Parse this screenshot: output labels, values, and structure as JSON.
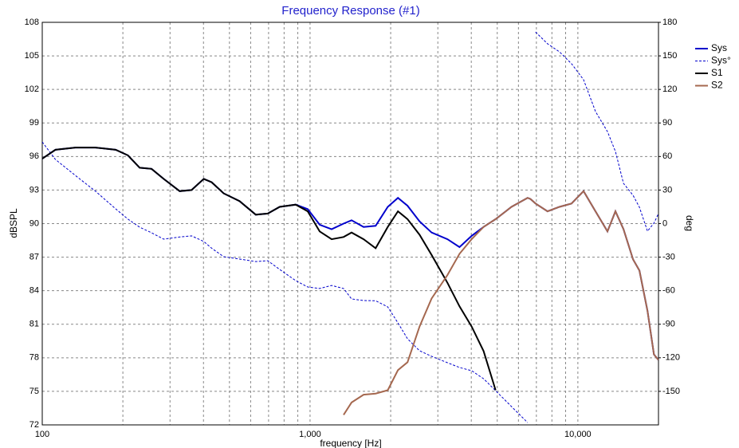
{
  "chart_data": {
    "type": "line",
    "title": "Frequency Response (#1)",
    "xlabel": "frequency [Hz]",
    "ylabel": "dBSPL",
    "y2label": "deg",
    "xscale": "log",
    "xlim": [
      100,
      20000
    ],
    "xticks": [
      100,
      {
        "value": 1000,
        "label": "1,000"
      },
      {
        "value": 10000,
        "label": "10,000"
      }
    ],
    "xminor_ticks": [
      200,
      300,
      400,
      500,
      600,
      700,
      800,
      900,
      2000,
      3000,
      4000,
      5000,
      6000,
      7000,
      8000,
      9000
    ],
    "ylim": [
      72,
      108
    ],
    "yticks": [
      72,
      75,
      78,
      81,
      84,
      87,
      90,
      93,
      96,
      99,
      102,
      105,
      108
    ],
    "y2lim": [
      -180,
      180
    ],
    "y2ticks": [
      -150,
      -120,
      -90,
      -60,
      -30,
      0,
      30,
      60,
      90,
      120,
      150,
      180
    ],
    "grid": true,
    "legend": "top-right",
    "x": [
      100,
      112,
      133,
      158,
      188,
      209,
      231,
      256,
      284,
      326,
      361,
      401,
      429,
      476,
      546,
      627,
      695,
      770,
      884,
      980,
      1086,
      1204,
      1334,
      1429,
      1585,
      1757,
      1950,
      2129,
      2311,
      2564,
      2843,
      3260,
      3614,
      4010,
      4446,
      4930,
      5652,
      6488,
      6650,
      6950,
      7705,
      8540,
      9470,
      10500,
      11640,
      12900,
      13810,
      14800,
      16070,
      16980,
      18190,
      19230,
      20000
    ],
    "series": [
      {
        "name": "Sys",
        "color": "#0000cc",
        "values": [
          95.8,
          96.6,
          96.8,
          96.8,
          96.6,
          96.1,
          95.0,
          94.9,
          94.0,
          92.9,
          93.0,
          94.0,
          93.7,
          92.7,
          92.0,
          90.8,
          90.9,
          91.5,
          91.7,
          91.3,
          89.9,
          89.5,
          90.0,
          90.3,
          89.7,
          89.8,
          91.5,
          92.3,
          91.6,
          90.2,
          89.2,
          88.6,
          87.9,
          88.9,
          89.7,
          90.4,
          91.5,
          92.3,
          92.2,
          91.8,
          91.1,
          91.5,
          91.8,
          92.9,
          91.1,
          89.3,
          91.1,
          89.5,
          86.8,
          85.8,
          82.2,
          78.3,
          77.8
        ]
      },
      {
        "name": "Sys°",
        "color": "#0000cc",
        "axis": "y2",
        "style": "dashed",
        "values": [
          73,
          57.4,
          43,
          29,
          13.2,
          4,
          -3.2,
          -8.2,
          -13.9,
          -12,
          -11,
          -16,
          -22,
          -29.6,
          -31.7,
          -33.9,
          -33.2,
          -41,
          -51,
          -56.7,
          -58,
          -55.3,
          -58,
          -67.4,
          -68.8,
          -69,
          -74.5,
          -88.8,
          -103,
          -113.7,
          -118.7,
          -124.4,
          -128.7,
          -131.5,
          -138.7,
          -149.4,
          -163.6,
          -177.9,
          null,
          171.4,
          160.8,
          153.6,
          143,
          128.7,
          100.2,
          82.3,
          64.5,
          36,
          25.3,
          14.6,
          -6.8,
          0.4,
          9
        ]
      },
      {
        "name": "S1",
        "color": "#000000",
        "values": [
          95.8,
          96.6,
          96.8,
          96.8,
          96.6,
          96.1,
          95.0,
          94.9,
          94.0,
          92.9,
          93.0,
          94.0,
          93.7,
          92.7,
          92.0,
          90.8,
          90.9,
          91.5,
          91.7,
          91.1,
          89.3,
          88.6,
          88.8,
          89.2,
          88.6,
          87.8,
          89.7,
          91.1,
          90.4,
          89.0,
          87.2,
          84.7,
          82.6,
          80.8,
          78.6,
          75.1,
          null,
          null,
          null,
          null,
          null,
          null,
          null,
          null,
          null,
          null,
          null,
          null,
          null,
          null,
          null,
          null,
          null
        ]
      },
      {
        "name": "S2",
        "color": "#a5684f",
        "values": [
          null,
          null,
          null,
          null,
          null,
          null,
          null,
          null,
          null,
          null,
          null,
          null,
          null,
          null,
          null,
          null,
          null,
          null,
          null,
          null,
          null,
          null,
          72.9,
          74.0,
          74.7,
          74.8,
          75.1,
          76.9,
          77.6,
          80.8,
          83.3,
          85.4,
          87.3,
          88.6,
          89.7,
          90.4,
          91.5,
          92.3,
          92.2,
          91.8,
          91.1,
          91.5,
          91.8,
          92.9,
          91.1,
          89.3,
          91.1,
          89.5,
          86.8,
          85.8,
          82.2,
          78.3,
          77.8
        ]
      }
    ]
  }
}
